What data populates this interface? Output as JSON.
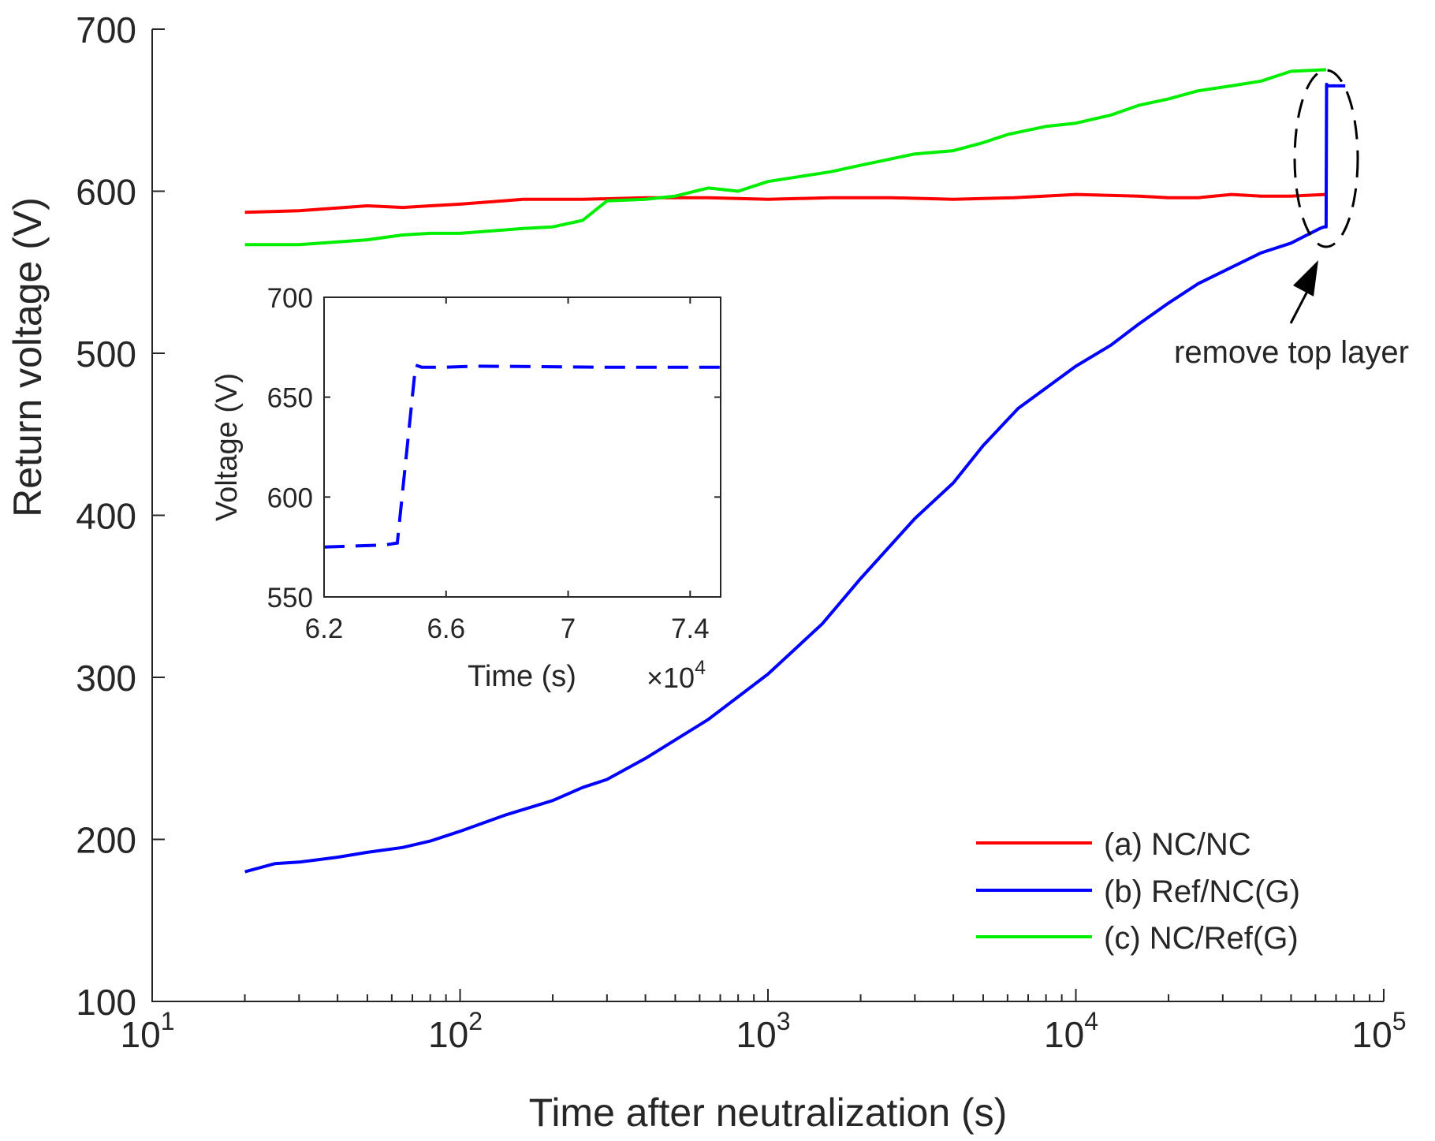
{
  "chart_data": [
    {
      "type": "line",
      "xscale": "log",
      "xlabel": "Time after neutralization (s)",
      "ylabel": "Return voltage (V)",
      "xlim": [
        10,
        100000
      ],
      "ylim": [
        100,
        700
      ],
      "yticks": [
        100,
        200,
        300,
        400,
        500,
        600,
        700
      ],
      "xticks": [
        {
          "value": 10,
          "base": "10",
          "exp": "1"
        },
        {
          "value": 100,
          "base": "10",
          "exp": "2"
        },
        {
          "value": 1000,
          "base": "10",
          "exp": "3"
        },
        {
          "value": 10000,
          "base": "10",
          "exp": "4"
        },
        {
          "value": 100000,
          "base": "10",
          "exp": "5"
        }
      ],
      "series": [
        {
          "name": "(a) NC/NC",
          "color": "#ff0000",
          "x": [
            20,
            30,
            50,
            65,
            80,
            100,
            160,
            250,
            400,
            640,
            1000,
            1600,
            2500,
            4000,
            6300,
            10000,
            16000,
            20000,
            25000,
            32000,
            40000,
            50000,
            65000
          ],
          "y": [
            587,
            588,
            591,
            590,
            591,
            592,
            595,
            595,
            596,
            596,
            595,
            596,
            596,
            595,
            596,
            598,
            597,
            596,
            596,
            598,
            597,
            597,
            598
          ]
        },
        {
          "name": "(b) Ref/NC(G)",
          "color": "#0000ff",
          "x": [
            20,
            25,
            30,
            40,
            50,
            65,
            80,
            100,
            140,
            200,
            250,
            300,
            400,
            640,
            1000,
            1500,
            2000,
            3000,
            4000,
            5000,
            6500,
            10000,
            13000,
            16000,
            20000,
            25000,
            32000,
            40000,
            50000,
            62000,
            64000,
            65000,
            65200,
            66000,
            70000,
            75000
          ],
          "y": [
            180,
            185,
            186,
            189,
            192,
            195,
            199,
            205,
            215,
            224,
            232,
            237,
            250,
            274,
            302,
            333,
            361,
            398,
            420,
            443,
            466,
            492,
            505,
            518,
            531,
            543,
            553,
            562,
            568,
            577,
            578,
            578,
            666,
            665,
            665,
            665
          ]
        },
        {
          "name": "(c) NC/Ref(G)",
          "color": "#00ee00",
          "x": [
            20,
            30,
            50,
            65,
            80,
            100,
            160,
            200,
            250,
            300,
            400,
            500,
            640,
            800,
            1000,
            1600,
            2000,
            3000,
            4000,
            5000,
            6000,
            8000,
            10000,
            13000,
            16000,
            20000,
            25000,
            32000,
            40000,
            50000,
            65000
          ],
          "y": [
            567,
            567,
            570,
            573,
            574,
            574,
            577,
            578,
            582,
            594,
            595,
            597,
            602,
            600,
            606,
            612,
            616,
            623,
            625,
            630,
            635,
            640,
            642,
            647,
            653,
            657,
            662,
            665,
            668,
            674,
            675
          ]
        }
      ],
      "legend_position": "bottom-right",
      "annotations": [
        {
          "text": "remove top layer"
        }
      ]
    },
    {
      "type": "line",
      "inset": true,
      "xlabel": "Time (s)",
      "ylabel": "Voltage (V)",
      "x_multiplier_base": "10",
      "x_multiplier_exp": "4",
      "xlim": [
        6.2,
        7.5
      ],
      "ylim": [
        550,
        700
      ],
      "xticks": [
        6.2,
        6.6,
        7,
        7.4
      ],
      "xtick_labels": [
        "6.2",
        "6.6",
        "7",
        "7.4"
      ],
      "yticks": [
        550,
        600,
        650,
        700
      ],
      "series": [
        {
          "name": "(b) Ref/NC(G)",
          "color": "#0000ff",
          "line_style": "dashed",
          "x": [
            6.2,
            6.3,
            6.4,
            6.44,
            6.5,
            6.52,
            6.6,
            6.7,
            6.9,
            7.1,
            7.3,
            7.5
          ],
          "y": [
            575,
            575.5,
            576,
            577,
            666,
            665,
            665,
            665.5,
            665.3,
            665,
            665,
            665
          ]
        }
      ]
    }
  ]
}
